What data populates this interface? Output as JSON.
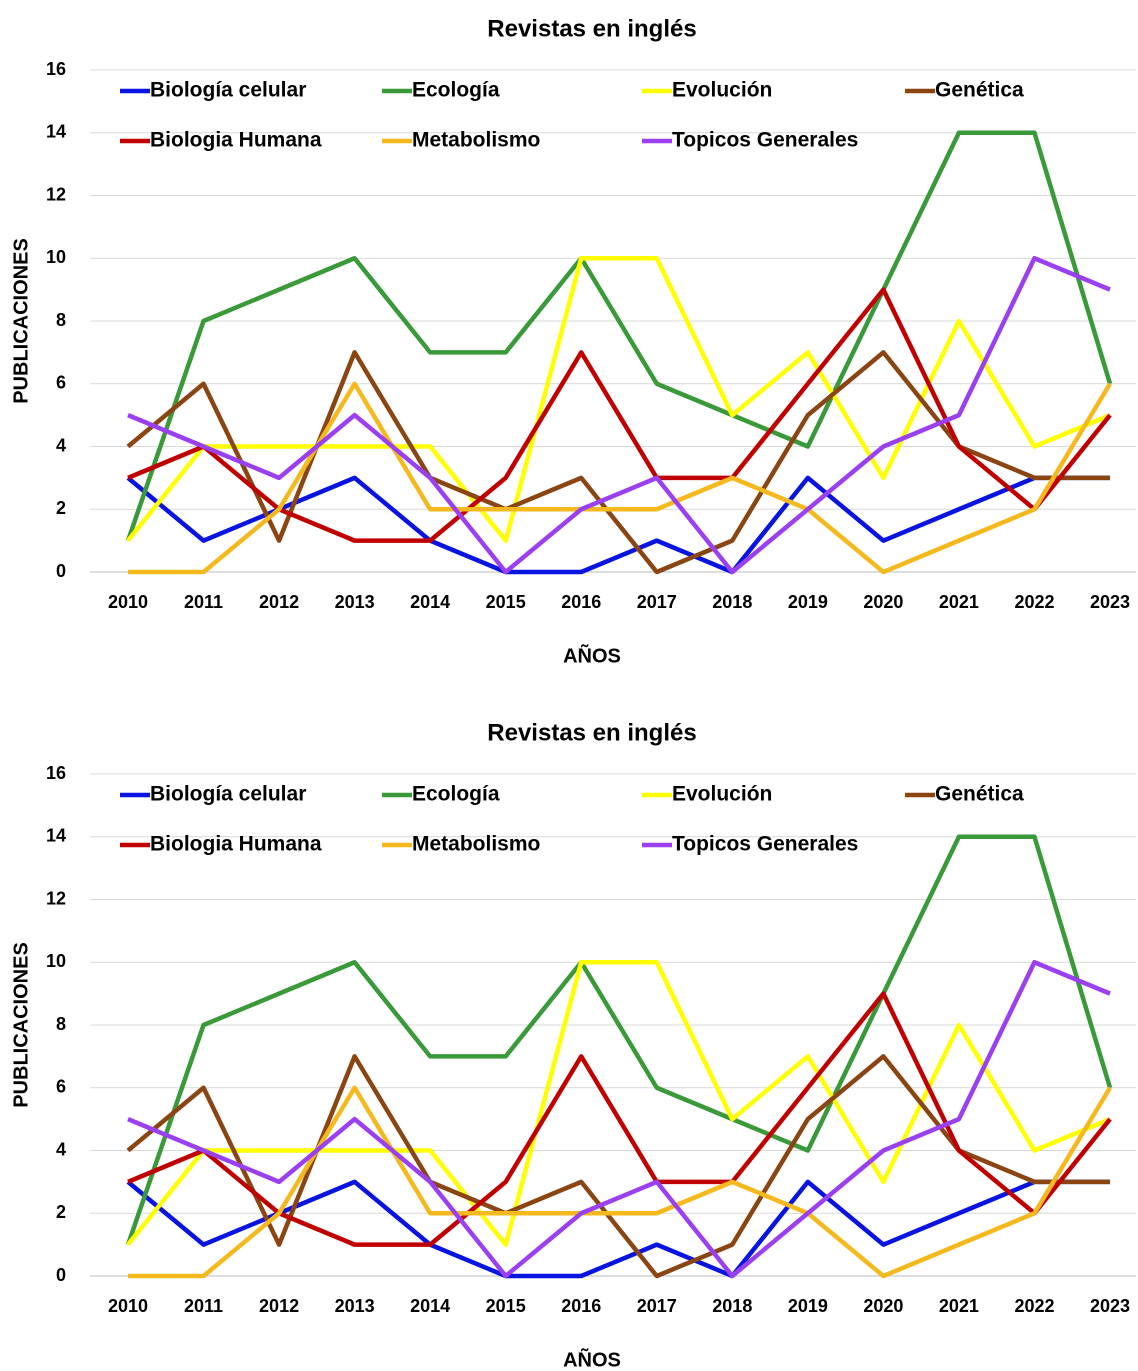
{
  "chart_data": [
    {
      "type": "line",
      "title": "Revistas en inglés",
      "x_label": "AÑOS",
      "y_label": "PUBLICACIONES",
      "categories": [
        "2010",
        "2011",
        "2012",
        "2013",
        "2014",
        "2015",
        "2016",
        "2017",
        "2018",
        "2019",
        "2020",
        "2021",
        "2022",
        "2023"
      ],
      "ylim": [
        0,
        16
      ],
      "yticks": [
        0,
        2,
        4,
        6,
        8,
        10,
        12,
        14,
        16
      ],
      "grid": true,
      "legend": "top",
      "series": [
        {
          "name": "Biología celular",
          "color": "#0a14e0",
          "values": [
            3,
            1,
            2,
            3,
            1,
            0,
            0,
            1,
            0,
            3,
            1,
            2,
            3,
            3
          ]
        },
        {
          "name": "Ecología",
          "color": "#3a9a3a",
          "values": [
            1,
            8,
            9,
            10,
            7,
            7,
            10,
            6,
            5,
            4,
            9,
            14,
            14,
            6
          ]
        },
        {
          "name": "Evolución",
          "color": "#ffff00",
          "values": [
            1,
            4,
            4,
            4,
            4,
            1,
            10,
            10,
            5,
            7,
            3,
            8,
            4,
            5
          ]
        },
        {
          "name": "Genética",
          "color": "#8b4513",
          "values": [
            4,
            6,
            1,
            7,
            3,
            2,
            3,
            0,
            1,
            5,
            7,
            4,
            3,
            3
          ]
        },
        {
          "name": "Biologia Humana",
          "color": "#c00000",
          "values": [
            3,
            4,
            2,
            1,
            1,
            3,
            7,
            3,
            3,
            6,
            9,
            4,
            2,
            5
          ]
        },
        {
          "name": "Metabolismo",
          "color": "#f5b91e",
          "values": [
            0,
            0,
            2,
            6,
            2,
            2,
            2,
            2,
            3,
            2,
            0,
            1,
            2,
            6
          ]
        },
        {
          "name": "Topicos Generales",
          "color": "#9b40f0",
          "values": [
            5,
            4,
            3,
            5,
            3,
            0,
            2,
            3,
            0,
            2,
            4,
            5,
            10,
            9
          ]
        }
      ]
    },
    {
      "type": "line",
      "title": "Revistas en inglés",
      "x_label": "AÑOS",
      "y_label": "PUBLICACIONES",
      "categories": [
        "2010",
        "2011",
        "2012",
        "2013",
        "2014",
        "2015",
        "2016",
        "2017",
        "2018",
        "2019",
        "2020",
        "2021",
        "2022",
        "2023"
      ],
      "ylim": [
        0,
        16
      ],
      "yticks": [
        0,
        2,
        4,
        6,
        8,
        10,
        12,
        14,
        16
      ],
      "grid": true,
      "legend": "top",
      "series": [
        {
          "name": "Biología celular",
          "color": "#0a14e0",
          "values": [
            3,
            1,
            2,
            3,
            1,
            0,
            0,
            1,
            0,
            3,
            1,
            2,
            3,
            3
          ]
        },
        {
          "name": "Ecología",
          "color": "#3a9a3a",
          "values": [
            1,
            8,
            9,
            10,
            7,
            7,
            10,
            6,
            5,
            4,
            9,
            14,
            14,
            6
          ]
        },
        {
          "name": "Evolución",
          "color": "#ffff00",
          "values": [
            1,
            4,
            4,
            4,
            4,
            1,
            10,
            10,
            5,
            7,
            3,
            8,
            4,
            5
          ]
        },
        {
          "name": "Genética",
          "color": "#8b4513",
          "values": [
            4,
            6,
            1,
            7,
            3,
            2,
            3,
            0,
            1,
            5,
            7,
            4,
            3,
            3
          ]
        },
        {
          "name": "Biologia Humana",
          "color": "#c00000",
          "values": [
            3,
            4,
            2,
            1,
            1,
            3,
            7,
            3,
            3,
            6,
            9,
            4,
            2,
            5
          ]
        },
        {
          "name": "Metabolismo",
          "color": "#f5b91e",
          "values": [
            0,
            0,
            2,
            6,
            2,
            2,
            2,
            2,
            3,
            2,
            0,
            1,
            2,
            6
          ]
        },
        {
          "name": "Topicos Generales",
          "color": "#9b40f0",
          "values": [
            5,
            4,
            3,
            5,
            3,
            0,
            2,
            3,
            0,
            2,
            4,
            5,
            10,
            9
          ]
        }
      ]
    }
  ]
}
